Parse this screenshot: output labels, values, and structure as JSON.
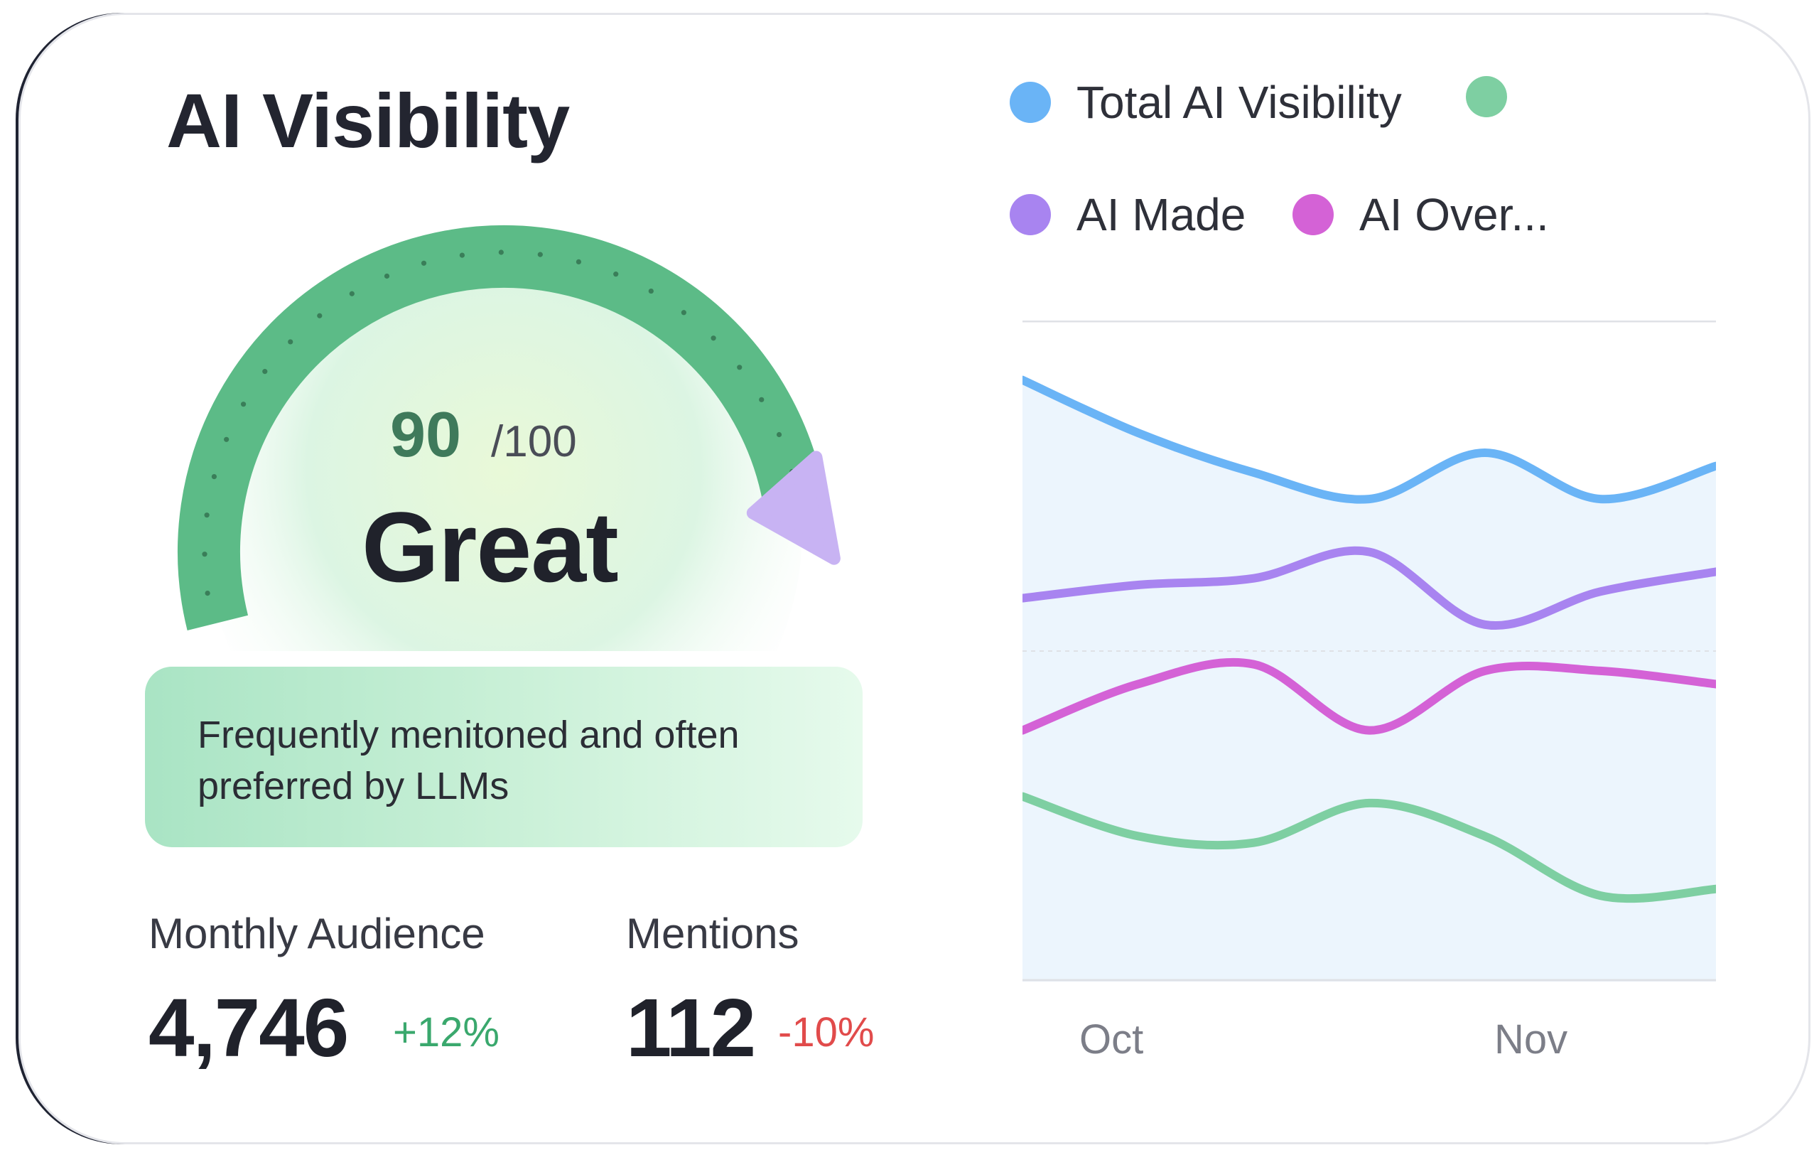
{
  "widget": {
    "title": "AI Visibility",
    "score": {
      "value": "90",
      "max": "/100",
      "fraction": 0.9
    },
    "rating": "Great",
    "description": "Frequently menitoned and often preferred by LLMs",
    "colors": {
      "gauge": "#5cbb87",
      "gauge_marker": "#c8b3f3",
      "positive": "#3aa86d",
      "negative": "#e14b4b"
    }
  },
  "stats": [
    {
      "label": "Monthly Audience",
      "value": "4,746",
      "change": "+12%",
      "direction": "up"
    },
    {
      "label": "Mentions",
      "value": "112",
      "change": "-10%",
      "direction": "down"
    }
  ],
  "legend": [
    {
      "label": "Total AI Visibility",
      "color": "#6ab4f6"
    },
    {
      "label": "",
      "color": "#7ecfa2"
    },
    {
      "label": "AI Made",
      "color": "#a884f0"
    },
    {
      "label": "AI Over...",
      "color": "#d462d6"
    }
  ],
  "chart_data": {
    "type": "line",
    "x_ticks": [
      "Oct",
      "Nov"
    ],
    "ylim": [
      0,
      100
    ],
    "series": [
      {
        "name": "Total AI Visibility",
        "color": "#6ab4f6",
        "values": [
          91,
          83,
          77,
          73,
          80,
          73,
          78
        ]
      },
      {
        "name": "",
        "color": "#7ecfa2",
        "values": [
          28,
          22,
          21,
          27,
          22,
          13,
          14
        ]
      },
      {
        "name": "AI Made",
        "color": "#a884f0",
        "values": [
          58,
          60,
          61,
          65,
          54,
          59,
          62
        ]
      },
      {
        "name": "AI Over...",
        "color": "#d462d6",
        "values": [
          38,
          45,
          48,
          38,
          47,
          47,
          45
        ]
      }
    ]
  }
}
